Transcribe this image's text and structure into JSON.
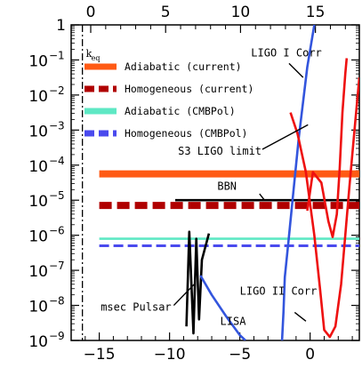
{
  "chart_data": {
    "type": "line",
    "xlim": [
      -17,
      3.5
    ],
    "ylim_log10": [
      -9,
      0
    ],
    "x_ticks": [
      -15,
      -10,
      -5,
      0
    ],
    "x_tick_labels": [
      "−15",
      "−10",
      "−5",
      "0"
    ],
    "x_top_ticks": [
      0,
      5,
      10,
      15
    ],
    "x_top_tick_labels": [
      "0",
      "5",
      "10",
      "15"
    ],
    "y_tick_exponents": [
      0,
      -1,
      -2,
      -3,
      -4,
      -5,
      -6,
      -7,
      -8,
      -9
    ],
    "y_tick_labels": [
      {
        "base": "1",
        "exp": ""
      },
      {
        "base": "10",
        "exp": "−1"
      },
      {
        "base": "10",
        "exp": "−2"
      },
      {
        "base": "10",
        "exp": "−3"
      },
      {
        "base": "10",
        "exp": "−4"
      },
      {
        "base": "10",
        "exp": "−5"
      },
      {
        "base": "10",
        "exp": "−6"
      },
      {
        "base": "10",
        "exp": "−7"
      },
      {
        "base": "10",
        "exp": "−8"
      },
      {
        "base": "10",
        "exp": "−9"
      }
    ],
    "k_eq": {
      "x": -16.2,
      "label_main": "k",
      "label_sub": "eq"
    },
    "legend": [
      {
        "label": "Adiabatic (current)",
        "color": "#ff5a14",
        "style": "solid"
      },
      {
        "label": "Homogeneous (current)",
        "color": "#b00000",
        "style": "dashed"
      },
      {
        "label": "Adiabatic (CMBPol)",
        "color": "#5ee8c4",
        "style": "solid"
      },
      {
        "label": "Homogeneous (CMBPol)",
        "color": "#4a4aee",
        "style": "dashed"
      }
    ],
    "series": [
      {
        "name": "Adiabatic (current)",
        "color": "#ff5a14",
        "style": "thick",
        "x": [
          -15,
          3.5
        ],
        "y_log10": [
          -4.25,
          -4.25
        ]
      },
      {
        "name": "Homogeneous (current)",
        "color": "#b00000",
        "style": "thick-dash",
        "x": [
          -15,
          3.5
        ],
        "y_log10": [
          -5.15,
          -5.15
        ]
      },
      {
        "name": "Adiabatic (CMBPol)",
        "color": "#5ee8c4",
        "style": "solid",
        "x": [
          -15,
          3.5
        ],
        "y_log10": [
          -6.1,
          -6.1
        ]
      },
      {
        "name": "Homogeneous (CMBPol)",
        "color": "#4a4aee",
        "style": "dash",
        "x": [
          -15,
          3.5
        ],
        "y_log10": [
          -6.3,
          -6.3
        ]
      },
      {
        "name": "BBN",
        "color": "#000000",
        "style": "solid",
        "x": [
          -9.6,
          3.5
        ],
        "y_log10": [
          -5.0,
          -5.0
        ]
      },
      {
        "name": "msec Pulsar",
        "color": "#000000",
        "style": "solid",
        "x": [
          -8.8,
          -8.6,
          -8.3,
          -8.1,
          -7.9,
          -7.7,
          -7.2
        ],
        "y_log10": [
          -8.6,
          -5.9,
          -8.8,
          -6.1,
          -8.4,
          -6.7,
          -5.95
        ]
      },
      {
        "name": "LISA",
        "color": "#3355dd",
        "style": "solid",
        "x": [
          -7.8,
          -7.0,
          -6.0,
          -5.0,
          -4.6
        ],
        "y_log10": [
          -7.15,
          -7.7,
          -8.3,
          -8.85,
          -9.0
        ]
      },
      {
        "name": "S3 LIGO limit",
        "color": "#3355dd",
        "style": "solid",
        "x": [
          -2.0,
          -1.9,
          -1.8,
          -1.5,
          -1.2,
          -0.8,
          -0.2,
          0.3
        ],
        "y_log10": [
          -9.0,
          -8.2,
          -7.2,
          -6.0,
          -4.8,
          -3.2,
          -1.2,
          0.0
        ]
      },
      {
        "name": "LIGO I Corr",
        "color": "#ee1111",
        "style": "solid",
        "x": [
          -0.2,
          0.2,
          0.8,
          1.3,
          1.6,
          1.9,
          2.1,
          2.3,
          2.5,
          2.6
        ],
        "y_log10": [
          -5.3,
          -4.2,
          -4.5,
          -5.6,
          -6.05,
          -5.4,
          -4.1,
          -2.5,
          -1.4,
          -0.95
        ]
      },
      {
        "name": "LIGO II Corr",
        "color": "#ee1111",
        "style": "solid",
        "x": [
          -1.4,
          -0.9,
          -0.3,
          0.3,
          0.7,
          1.0,
          1.4,
          1.8,
          2.2,
          2.5,
          2.8,
          3.2,
          3.5
        ],
        "y_log10": [
          -2.5,
          -3.1,
          -4.2,
          -6.0,
          -7.5,
          -8.7,
          -8.9,
          -8.6,
          -7.4,
          -6.0,
          -4.6,
          -2.8,
          -1.5
        ]
      }
    ],
    "annotations": [
      {
        "text": "BBN",
        "x": -6.6,
        "y_log10": -4.7,
        "leader": [
          [
            -3.6,
            -4.82
          ],
          [
            -3.2,
            -5.02
          ]
        ]
      },
      {
        "text": "S3 LIGO limit",
        "x": -9.4,
        "y_log10": -3.7,
        "leader": [
          [
            -3.4,
            -3.55
          ],
          [
            -0.15,
            -2.85
          ]
        ]
      },
      {
        "text": "LIGO I Corr",
        "x": -4.2,
        "y_log10": -0.9,
        "leader": [
          [
            -1.5,
            -1.1
          ],
          [
            -0.5,
            -1.5
          ]
        ]
      },
      {
        "text": "LIGO II Corr",
        "x": -5.0,
        "y_log10": -7.7,
        "leader": [
          [
            -1.1,
            -8.2
          ],
          [
            -0.3,
            -8.45
          ]
        ]
      },
      {
        "text": "LISA",
        "x": -6.4,
        "y_log10": -8.55,
        "leader": []
      },
      {
        "text": "msec Pulsar",
        "x": -14.9,
        "y_log10": -8.15,
        "leader": [
          [
            -9.7,
            -8.0
          ],
          [
            -8.25,
            -7.4
          ]
        ]
      }
    ]
  }
}
